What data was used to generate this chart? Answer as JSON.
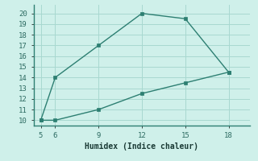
{
  "xlabel": "Humidex (Indice chaleur)",
  "upper_x": [
    5,
    6,
    9,
    12,
    15,
    18
  ],
  "upper_y": [
    10,
    14,
    17,
    20,
    19.5,
    14.5
  ],
  "lower_x": [
    5,
    6,
    9,
    12,
    15,
    18
  ],
  "lower_y": [
    10,
    10,
    11,
    12.5,
    13.5,
    14.5
  ],
  "xlim": [
    4.5,
    19.5
  ],
  "ylim": [
    9.5,
    20.8
  ],
  "xticks": [
    5,
    6,
    9,
    12,
    15,
    18
  ],
  "yticks": [
    10,
    11,
    12,
    13,
    14,
    15,
    16,
    17,
    18,
    19,
    20
  ],
  "line_color": "#2d7f72",
  "bg_color": "#cff0ea",
  "grid_color": "#a8d8d0",
  "tick_label_color": "#2d6b62",
  "xlabel_color": "#1a3a35",
  "spine_color": "#2d7f72"
}
